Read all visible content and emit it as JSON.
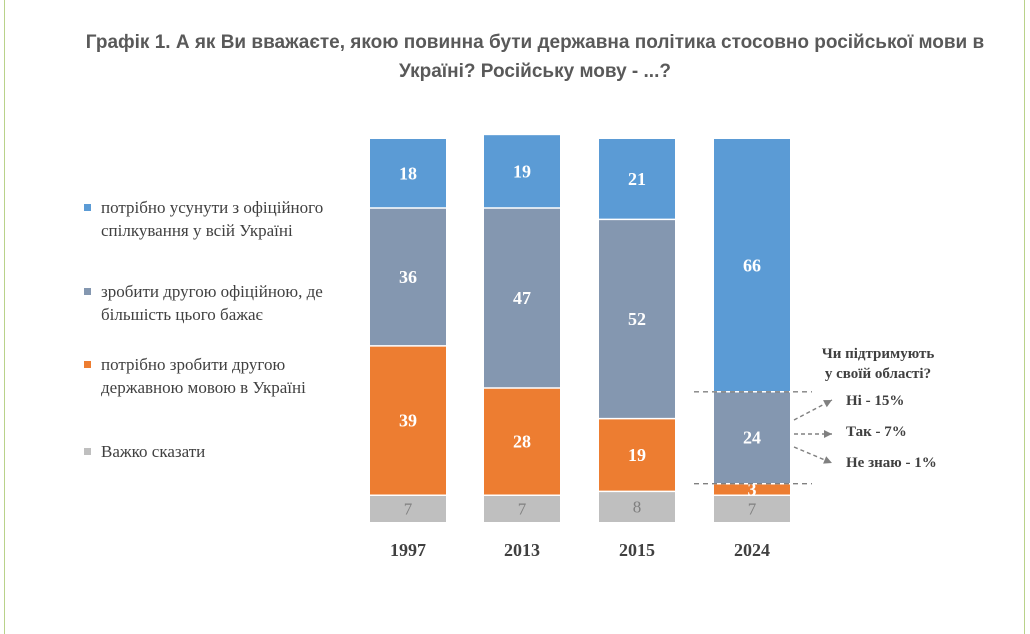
{
  "title": "Графік 1. А як Ви вважаєте, якою повинна бути державна політика стосовно російської мови в Україні? Російську мову - ...?",
  "legend": [
    {
      "label": "потрібно усунути з офіційного спілкування у всій Україні",
      "color": "#5b9bd5"
    },
    {
      "label": "зробити другою офіційною, де більшість цього бажає",
      "color": "#8497b0"
    },
    {
      "label": "потрібно зробити другою державною мовою в Україні",
      "color": "#ed7d31"
    },
    {
      "label": "Важко сказати",
      "color": "#bfbfbf"
    }
  ],
  "chart_data": {
    "type": "bar",
    "stacked": true,
    "categories": [
      "1997",
      "2013",
      "2015",
      "2024"
    ],
    "series": [
      {
        "name": "Важко сказати",
        "color": "#bfbfbf",
        "values": [
          7,
          7,
          8,
          7
        ]
      },
      {
        "name": "потрібно зробити другою державною мовою в Україні",
        "color": "#ed7d31",
        "values": [
          39,
          28,
          19,
          3
        ]
      },
      {
        "name": "зробити другою офіційною, де більшість цього бажає",
        "color": "#8497b0",
        "values": [
          36,
          47,
          52,
          24
        ]
      },
      {
        "name": "потрібно усунути з офіційного спілкування у всій Україні",
        "color": "#5b9bd5",
        "values": [
          18,
          19,
          21,
          66
        ]
      }
    ],
    "legend_position": "left",
    "grid": false,
    "annotation": {
      "question": [
        "Чи підтримують",
        "у своїй області?"
      ],
      "items": [
        "Ні - 15%",
        "Так - 7%",
        "Не знаю - 1%"
      ]
    }
  }
}
